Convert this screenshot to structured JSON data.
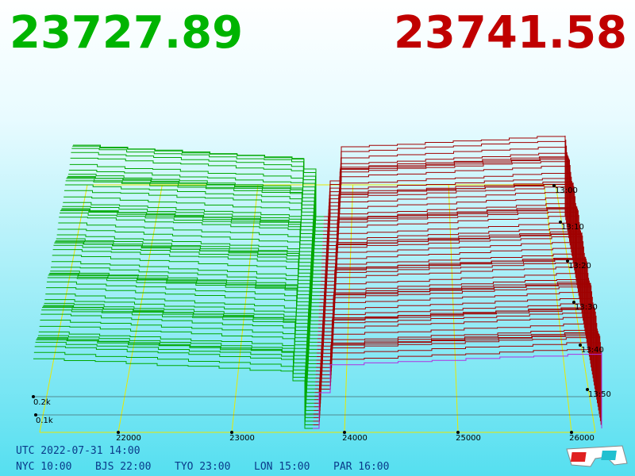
{
  "header": {
    "bid": "23727.89",
    "ask": "23741.58"
  },
  "price_axis": [
    "22000",
    "23000",
    "24000",
    "25000",
    "26000"
  ],
  "time_axis": [
    "13:00",
    "13:10",
    "13:20",
    "13:30",
    "13:40",
    "13:50"
  ],
  "volume_axis": [
    "0.2k",
    "0.1k"
  ],
  "footer": {
    "utc": "UTC 2022-07-31 14:00",
    "clocks": [
      "NYC 10:00",
      "BJS 22:00",
      "TYO 23:00",
      "LON 15:00",
      "PAR 16:00"
    ]
  }
}
